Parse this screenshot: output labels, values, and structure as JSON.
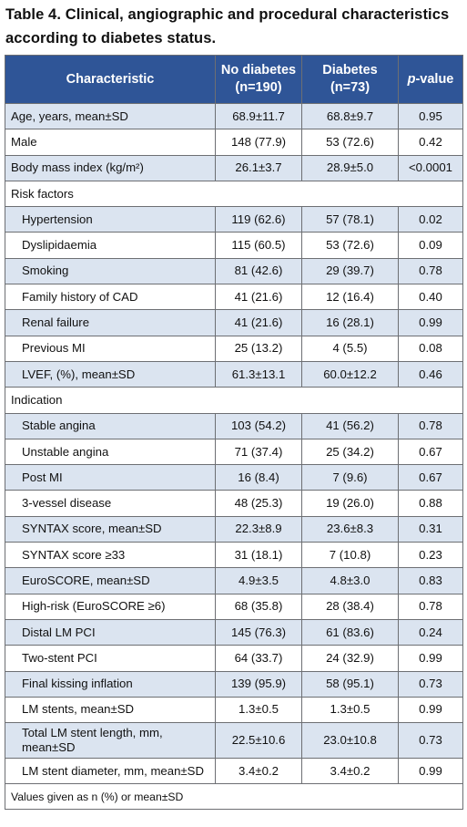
{
  "caption": {
    "line1": "Table 4. Clinical, angiographic and procedural characteristics",
    "line2": "according to diabetes status."
  },
  "header": {
    "characteristic": "Characteristic",
    "no_diabetes_1": "No diabetes",
    "no_diabetes_2": "(n=190)",
    "diabetes_1": "Diabetes",
    "diabetes_2": "(n=73)",
    "pvalue_italic": "p",
    "pvalue_rest": "-value"
  },
  "rows": [
    {
      "label": "Age, years, mean±SD",
      "no": "68.9±11.7",
      "yes": "68.8±9.7",
      "p": "0.95"
    },
    {
      "label": "Male",
      "no": "148 (77.9)",
      "yes": "53 (72.6)",
      "p": "0.42"
    },
    {
      "label": "Body mass index (kg/m²)",
      "no": "26.1±3.7",
      "yes": "28.9±5.0",
      "p": "<0.0001"
    },
    {
      "label": "Risk factors"
    },
    {
      "label": "Hypertension",
      "no": "119 (62.6)",
      "yes": "57 (78.1)",
      "p": "0.02"
    },
    {
      "label": "Dyslipidaemia",
      "no": "115 (60.5)",
      "yes": "53 (72.6)",
      "p": "0.09"
    },
    {
      "label": "Smoking",
      "no": "81 (42.6)",
      "yes": "29 (39.7)",
      "p": "0.78"
    },
    {
      "label": "Family history of CAD",
      "no": "41 (21.6)",
      "yes": "12 (16.4)",
      "p": "0.40"
    },
    {
      "label": "Renal failure",
      "no": "41 (21.6)",
      "yes": "16 (28.1)",
      "p": "0.99"
    },
    {
      "label": "Previous MI",
      "no": "25 (13.2)",
      "yes": "4 (5.5)",
      "p": "0.08"
    },
    {
      "label": "LVEF, (%), mean±SD",
      "no": "61.3±13.1",
      "yes": "60.0±12.2",
      "p": "0.46"
    },
    {
      "label": "Indication"
    },
    {
      "label": "Stable angina",
      "no": "103 (54.2)",
      "yes": "41 (56.2)",
      "p": "0.78"
    },
    {
      "label": "Unstable angina",
      "no": "71 (37.4)",
      "yes": "25 (34.2)",
      "p": "0.67"
    },
    {
      "label": "Post MI",
      "no": "16 (8.4)",
      "yes": "7 (9.6)",
      "p": "0.67"
    },
    {
      "label": "3-vessel disease",
      "no": "48 (25.3)",
      "yes": "19 (26.0)",
      "p": "0.88"
    },
    {
      "label": "SYNTAX score, mean±SD",
      "no": "22.3±8.9",
      "yes": "23.6±8.3",
      "p": "0.31"
    },
    {
      "label": "SYNTAX score ≥33",
      "no": "31 (18.1)",
      "yes": "7 (10.8)",
      "p": "0.23"
    },
    {
      "label": "EuroSCORE, mean±SD",
      "no": "4.9±3.5",
      "yes": "4.8±3.0",
      "p": "0.83"
    },
    {
      "label": "High-risk (EuroSCORE ≥6)",
      "no": "68 (35.8)",
      "yes": "28 (38.4)",
      "p": "0.78"
    },
    {
      "label": "Distal LM PCI",
      "no": "145 (76.3)",
      "yes": "61 (83.6)",
      "p": "0.24"
    },
    {
      "label": "Two-stent PCI",
      "no": "64 (33.7)",
      "yes": "24 (32.9)",
      "p": "0.99"
    },
    {
      "label": "Final kissing inflation",
      "no": "139 (95.9)",
      "yes": "58 (95.1)",
      "p": "0.73"
    },
    {
      "label": "LM stents, mean±SD",
      "no": "1.3±0.5",
      "yes": "1.3±0.5",
      "p": "0.99"
    },
    {
      "label": "Total LM stent length, mm, mean±SD",
      "no": "22.5±10.6",
      "yes": "23.0±10.8",
      "p": "0.73"
    },
    {
      "label": "LM stent diameter, mm, mean±SD",
      "no": "3.4±0.2",
      "yes": "3.4±0.2",
      "p": "0.99"
    }
  ],
  "footnote": "Values given as n (%) or mean±SD",
  "colors": {
    "header_bg": "#2f5597",
    "row_shade": "#dbe4f0",
    "border": "#6d6f73"
  }
}
